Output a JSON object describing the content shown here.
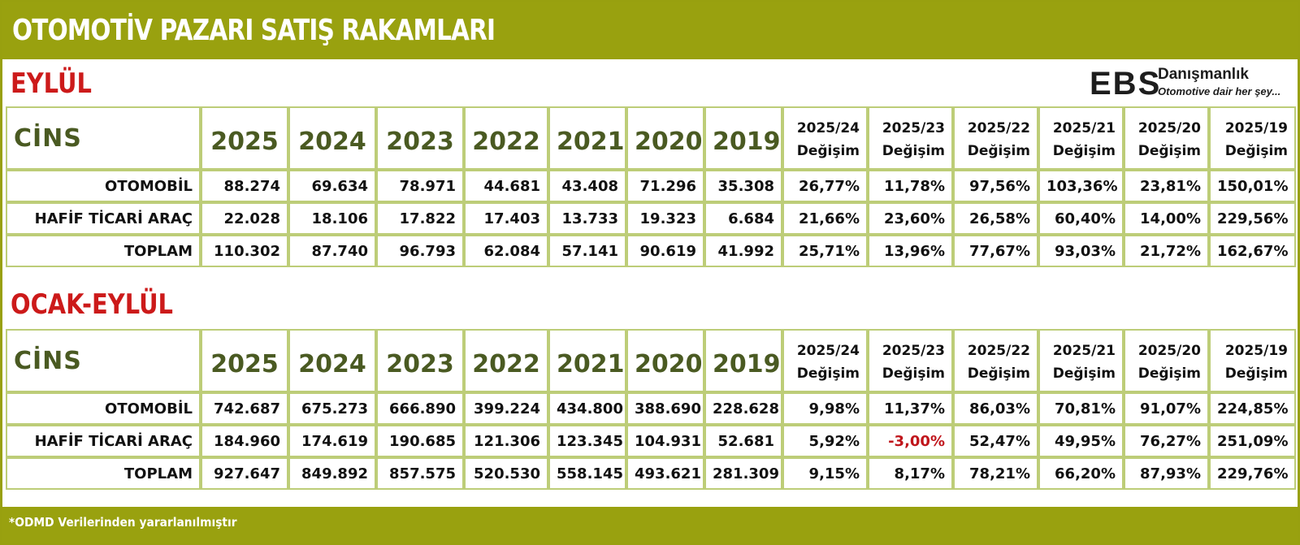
{
  "title": "OTOMOTİV PAZARI SATIŞ RAKAMLARI",
  "logo": {
    "mark": "EBS",
    "brand": "Danışmanlık",
    "tagline": "Otomotive dair her şey..."
  },
  "footer_note": "*ODMD Verilerinden yararlanılmıştır",
  "colors": {
    "header_bg": "#99a10f",
    "section_label": "#cc1a1a",
    "header_text": "#4a5a22",
    "negative": "#c0161c",
    "cell_border": "#bdcd78"
  },
  "sections": [
    {
      "label": "EYLÜL",
      "columns": {
        "cins": "CİNS",
        "years": [
          "2025",
          "2024",
          "2023",
          "2022",
          "2021",
          "2020",
          "2019"
        ],
        "changes": [
          {
            "period": "2025/24",
            "label": "Değişim"
          },
          {
            "period": "2025/23",
            "label": "Değişim"
          },
          {
            "period": "2025/22",
            "label": "Değişim"
          },
          {
            "period": "2025/21",
            "label": "Değişim"
          },
          {
            "period": "2025/20",
            "label": "Değişim"
          },
          {
            "period": "2025/19",
            "label": "Değişim"
          }
        ]
      },
      "rows": [
        {
          "name": "OTOMOBİL",
          "values": [
            "88.274",
            "69.634",
            "78.971",
            "44.681",
            "43.408",
            "71.296",
            "35.308"
          ],
          "changes": [
            "26,77%",
            "11,78%",
            "97,56%",
            "103,36%",
            "23,81%",
            "150,01%"
          ]
        },
        {
          "name": "HAFİF TİCARİ ARAÇ",
          "values": [
            "22.028",
            "18.106",
            "17.822",
            "17.403",
            "13.733",
            "19.323",
            "6.684"
          ],
          "changes": [
            "21,66%",
            "23,60%",
            "26,58%",
            "60,40%",
            "14,00%",
            "229,56%"
          ]
        },
        {
          "name": "TOPLAM",
          "values": [
            "110.302",
            "87.740",
            "96.793",
            "62.084",
            "57.141",
            "90.619",
            "41.992"
          ],
          "changes": [
            "25,71%",
            "13,96%",
            "77,67%",
            "93,03%",
            "21,72%",
            "162,67%"
          ]
        }
      ]
    },
    {
      "label": "OCAK-EYLÜL",
      "columns": {
        "cins": "CİNS",
        "years": [
          "2025",
          "2024",
          "2023",
          "2022",
          "2021",
          "2020",
          "2019"
        ],
        "changes": [
          {
            "period": "2025/24",
            "label": "Değişim"
          },
          {
            "period": "2025/23",
            "label": "Değişim"
          },
          {
            "period": "2025/22",
            "label": "Değişim"
          },
          {
            "period": "2025/21",
            "label": "Değişim"
          },
          {
            "period": "2025/20",
            "label": "Değişim"
          },
          {
            "period": "2025/19",
            "label": "Değişim"
          }
        ]
      },
      "rows": [
        {
          "name": "OTOMOBİL",
          "values": [
            "742.687",
            "675.273",
            "666.890",
            "399.224",
            "434.800",
            "388.690",
            "228.628"
          ],
          "changes": [
            "9,98%",
            "11,37%",
            "86,03%",
            "70,81%",
            "91,07%",
            "224,85%"
          ]
        },
        {
          "name": "HAFİF TİCARİ ARAÇ",
          "values": [
            "184.960",
            "174.619",
            "190.685",
            "121.306",
            "123.345",
            "104.931",
            "52.681"
          ],
          "changes": [
            "5,92%",
            "-3,00%",
            "52,47%",
            "49,95%",
            "76,27%",
            "251,09%"
          ]
        },
        {
          "name": "TOPLAM",
          "values": [
            "927.647",
            "849.892",
            "857.575",
            "520.530",
            "558.145",
            "493.621",
            "281.309"
          ],
          "changes": [
            "9,15%",
            "8,17%",
            "78,21%",
            "66,20%",
            "87,93%",
            "229,76%"
          ]
        }
      ]
    }
  ]
}
